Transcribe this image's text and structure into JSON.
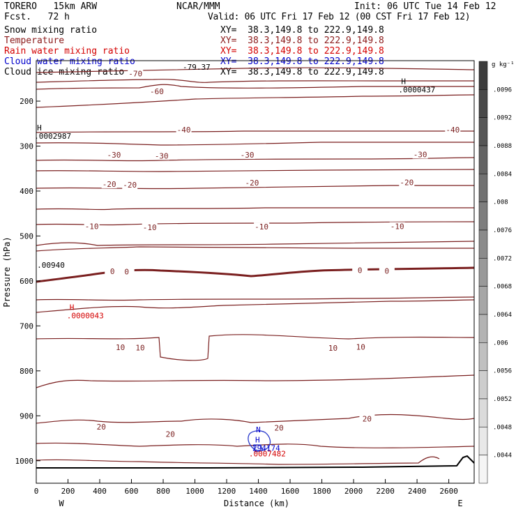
{
  "header": {
    "model": "TORERO   15km ARW",
    "forecast": "Fcst.   72 h",
    "center": "NCAR/MMM",
    "init": "Init: 06 UTC Tue 14 Feb 12",
    "valid": "Valid: 06 UTC Fri 17 Feb 12 (00 CST Fri 17 Feb 12)"
  },
  "fields": [
    {
      "name": "Snow mixing ratio",
      "color": "#000000"
    },
    {
      "name": "Temperature",
      "color": "#8b1a1a"
    },
    {
      "name": "Rain water mixing ratio",
      "color": "#d40000"
    },
    {
      "name": "Cloud water mixing ratio",
      "color": "#0000cc"
    },
    {
      "name": "Cloud ice mixing ratio",
      "color": "#000000"
    }
  ],
  "xsec_range": "XY=  38.3,149.8 to 222.9,149.8",
  "chart_data": {
    "type": "cross-section",
    "xlabel": "Distance (km)",
    "ylabel": "Pressure (hPa)",
    "x_ticks": [
      0,
      200,
      400,
      600,
      800,
      1000,
      1200,
      1400,
      1600,
      1800,
      2000,
      2200,
      2400,
      2600
    ],
    "xlim": [
      0,
      2760
    ],
    "y_ticks": [
      200,
      300,
      400,
      500,
      600,
      700,
      800,
      900,
      1000
    ],
    "ylim": [
      1050,
      110
    ],
    "end_labels": {
      "left": "W",
      "right": "E"
    },
    "colorbar": {
      "unit": "g kg⁻¹",
      "ticks": [
        ".0096",
        ".0092",
        ".0088",
        ".0084",
        ".008",
        ".0076",
        ".0072",
        ".0068",
        ".0064",
        ".006",
        ".0056",
        ".0052",
        ".0048",
        ".0044"
      ]
    },
    "temperature_labels": [
      {
        "text": "-70",
        "x": 625,
        "p": 140
      },
      {
        "text": "-60",
        "x": 760,
        "p": 180
      },
      {
        "text": "-40",
        "x": 930,
        "p": 265
      },
      {
        "text": "-40",
        "x": 2625,
        "p": 265
      },
      {
        "text": "-30",
        "x": 490,
        "p": 321
      },
      {
        "text": "-30",
        "x": 790,
        "p": 323
      },
      {
        "text": "-30",
        "x": 1330,
        "p": 321
      },
      {
        "text": "-30",
        "x": 2420,
        "p": 320
      },
      {
        "text": "-20",
        "x": 460,
        "p": 386
      },
      {
        "text": "-20",
        "x": 590,
        "p": 388
      },
      {
        "text": "-20",
        "x": 1360,
        "p": 383
      },
      {
        "text": "-20",
        "x": 2335,
        "p": 382
      },
      {
        "text": "-10",
        "x": 350,
        "p": 480
      },
      {
        "text": "-10",
        "x": 715,
        "p": 482
      },
      {
        "text": "-10",
        "x": 1420,
        "p": 481
      },
      {
        "text": "-10",
        "x": 2275,
        "p": 480
      },
      {
        "text": "0",
        "x": 480,
        "p": 580
      },
      {
        "text": "0",
        "x": 570,
        "p": 581
      },
      {
        "text": "0",
        "x": 2040,
        "p": 578
      },
      {
        "text": "0",
        "x": 2210,
        "p": 579
      },
      {
        "text": "10",
        "x": 530,
        "p": 749
      },
      {
        "text": "10",
        "x": 655,
        "p": 750
      },
      {
        "text": "10",
        "x": 1870,
        "p": 751
      },
      {
        "text": "10",
        "x": 2045,
        "p": 748
      },
      {
        "text": "20",
        "x": 410,
        "p": 926
      },
      {
        "text": "20",
        "x": 845,
        "p": 942
      },
      {
        "text": "20",
        "x": 1530,
        "p": 928
      },
      {
        "text": "20",
        "x": 2085,
        "p": 908
      }
    ],
    "extrema": [
      {
        "mark": "H",
        "value": ".0000437",
        "x": 2300,
        "p": 165,
        "color": "#000000"
      },
      {
        "mark": "H",
        "value": ".0002987",
        "x": 5,
        "p": 268,
        "color": "#000000"
      },
      {
        "mark": "",
        "value": ".00940",
        "x": 5,
        "p": 555,
        "color": "#000000"
      },
      {
        "mark": "H",
        "value": ".0000043",
        "x": 210,
        "p": 668,
        "color": "#d40000"
      },
      {
        "mark": "N",
        "value": "",
        "x": 1385,
        "p": 940,
        "color": "#0000cc"
      },
      {
        "mark": "H",
        "value": "294174",
        "x": 1380,
        "p": 962,
        "color": "#0000cc"
      },
      {
        "mark": "",
        "value": ".0007482",
        "x": 1340,
        "p": 975,
        "color": "#d40000"
      }
    ],
    "overlay_value": "-79.37"
  }
}
